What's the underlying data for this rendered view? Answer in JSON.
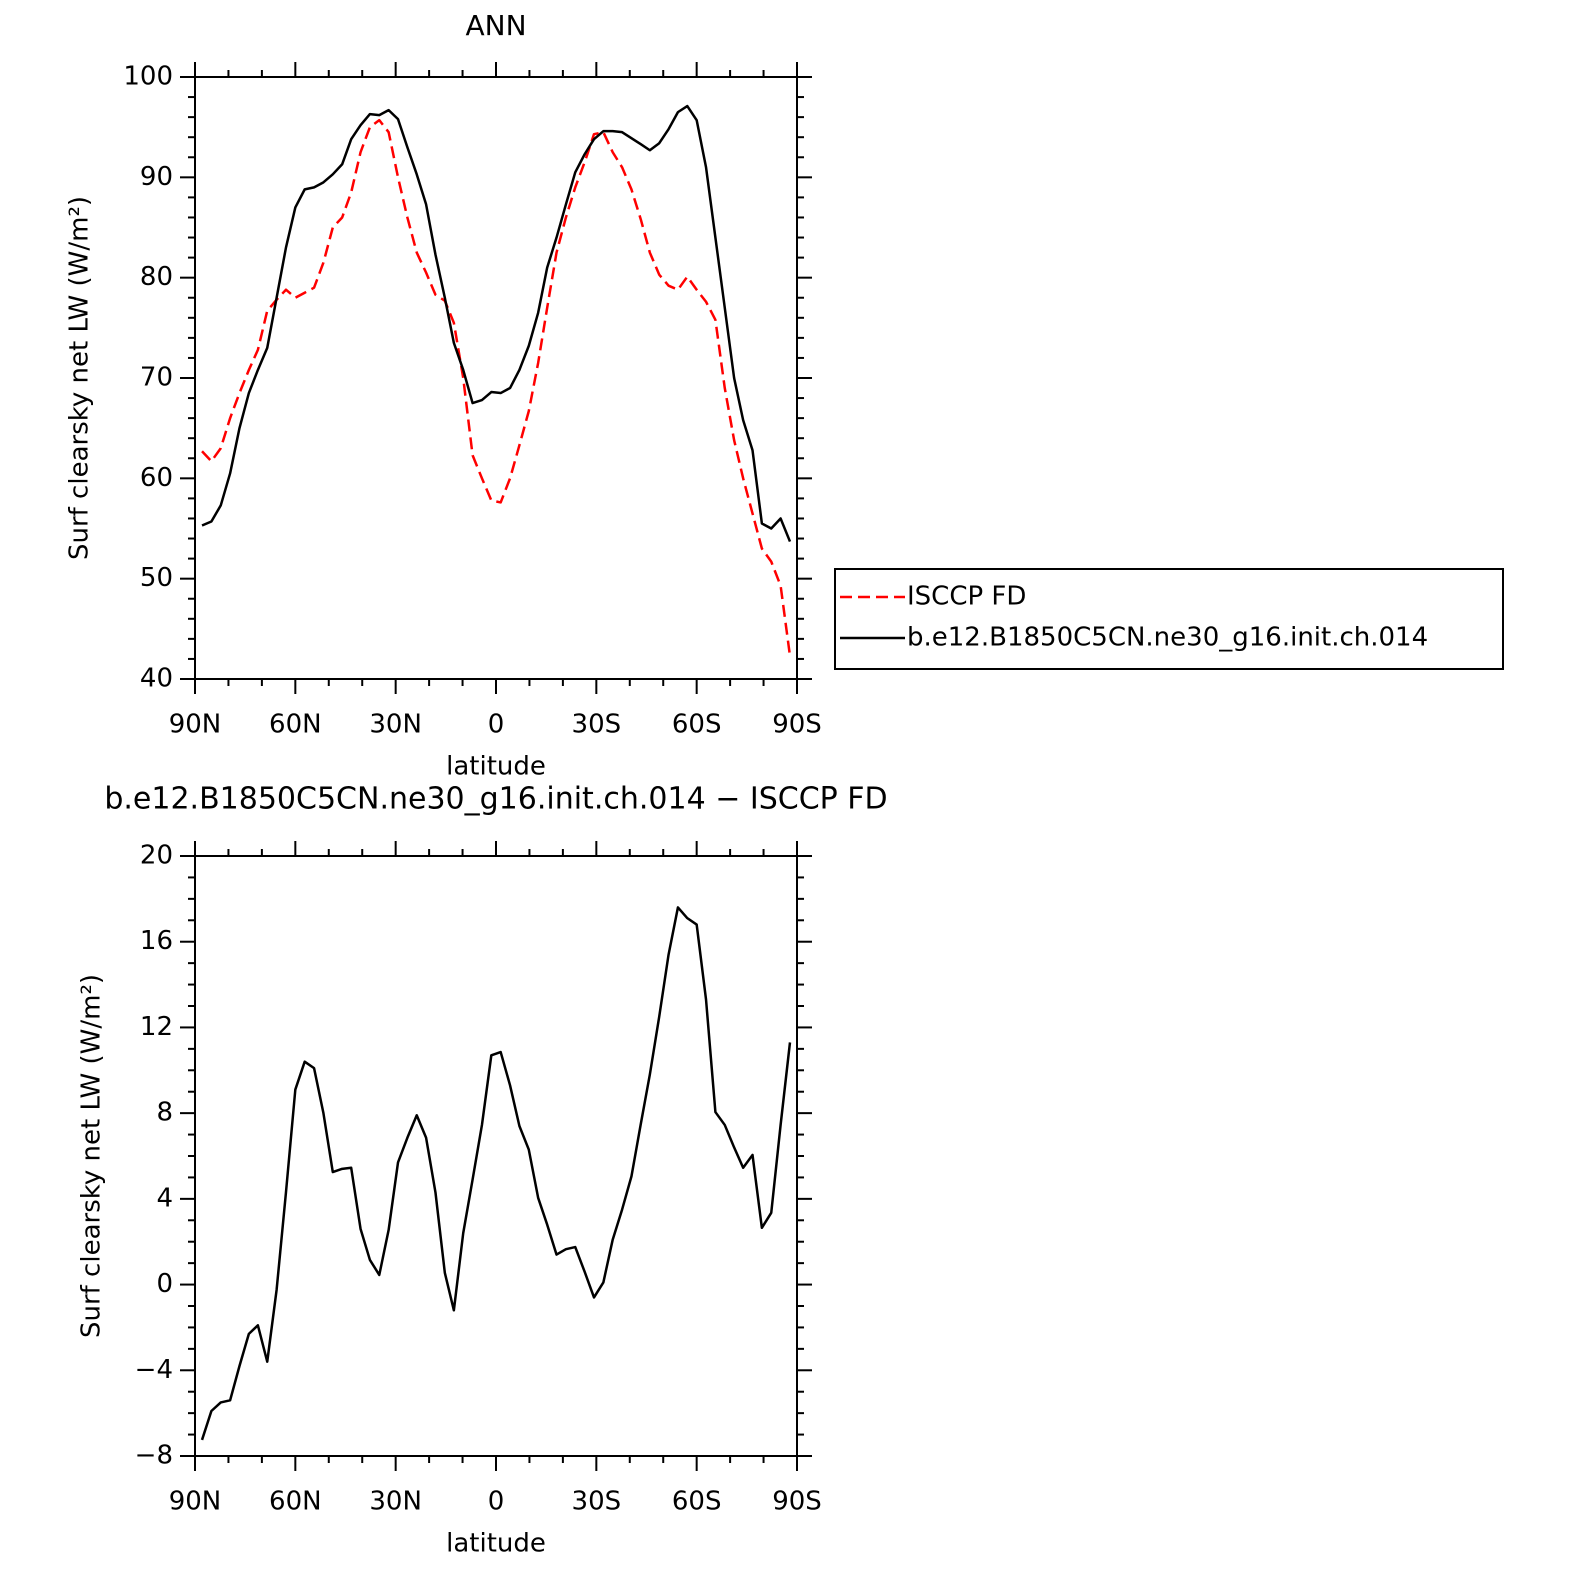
{
  "chart_data": [
    {
      "type": "line",
      "title": "ANN",
      "x_label": "latitude",
      "y_label": "Surf clearsky net LW (W/m²)",
      "x": [
        87.9,
        85.1,
        82.3,
        79.5,
        76.7,
        73.9,
        71.2,
        68.4,
        65.6,
        62.8,
        60.0,
        57.2,
        54.4,
        51.6,
        48.8,
        46.0,
        43.3,
        40.5,
        37.7,
        34.9,
        32.1,
        29.3,
        26.5,
        23.7,
        20.9,
        18.1,
        15.3,
        12.6,
        9.8,
        7.0,
        4.2,
        1.4,
        -1.4,
        -4.2,
        -7.0,
        -9.8,
        -12.6,
        -15.3,
        -18.1,
        -20.9,
        -23.7,
        -26.5,
        -29.3,
        -32.1,
        -34.9,
        -37.7,
        -40.5,
        -43.3,
        -46.0,
        -48.8,
        -51.6,
        -54.4,
        -57.2,
        -60.0,
        -62.8,
        -65.6,
        -68.4,
        -71.2,
        -73.9,
        -76.7,
        -79.5,
        -82.3,
        -85.1,
        -87.9
      ],
      "series": [
        {
          "name": "ISCCP FD",
          "color": "#ff0000",
          "dashed": true,
          "values": [
            62.7,
            61.7,
            63,
            66,
            68.5,
            70.8,
            72.8,
            76.7,
            77.8,
            78.8,
            78,
            78.5,
            79,
            81.5,
            85,
            86,
            88.5,
            92.5,
            95,
            95.7,
            94.5,
            90,
            86,
            82.5,
            80.5,
            78.3,
            77.7,
            75.5,
            70,
            62.3,
            60,
            57.8,
            57.6,
            60,
            63.3,
            66.7,
            71.5,
            77,
            82.5,
            86,
            89,
            91.5,
            94.3,
            94.5,
            92.5,
            91,
            88.8,
            85.8,
            82.5,
            80.3,
            79.2,
            78.8,
            80.1,
            78.8,
            77.6,
            75.8,
            69,
            63.8,
            60,
            56.5,
            53,
            51.7,
            49.3,
            42.3
          ]
        },
        {
          "name": "b.e12.B1850C5CN.ne30_g16.init.ch.014",
          "color": "#000000",
          "dashed": false,
          "values": [
            55.3,
            55.7,
            57.3,
            60.5,
            65,
            68.5,
            70.8,
            73,
            78,
            83,
            87,
            88.8,
            89,
            89.5,
            90.3,
            91.3,
            93.8,
            95.2,
            96.3,
            96.2,
            96.7,
            95.8,
            93,
            90.3,
            87.3,
            82.3,
            78,
            73.5,
            70.8,
            67.5,
            67.8,
            68.6,
            68.5,
            69,
            70.8,
            73.2,
            76.5,
            81,
            84,
            87.3,
            90.5,
            92.3,
            93.8,
            94.6,
            94.6,
            94.5,
            93.9,
            93.3,
            92.7,
            93.4,
            94.8,
            96.5,
            97.1,
            95.7,
            91,
            84,
            77,
            70,
            65.8,
            62.8,
            55.5,
            55,
            56,
            53.7
          ]
        }
      ],
      "xlim": [
        90,
        -90
      ],
      "xticks": [
        {
          "value": 90,
          "label": "90N"
        },
        {
          "value": 60,
          "label": "60N"
        },
        {
          "value": 30,
          "label": "30N"
        },
        0,
        {
          "value": -30,
          "label": "30S"
        },
        {
          "value": -60,
          "label": "60S"
        },
        {
          "value": -90,
          "label": "90S"
        }
      ],
      "xminorticks": [
        80,
        70,
        50,
        40,
        20,
        10,
        -10,
        -20,
        -40,
        -50,
        -70,
        -80
      ],
      "ylim": [
        40,
        100
      ],
      "yticks": [
        40,
        50,
        60,
        70,
        80,
        90,
        100
      ],
      "yminorticks": [
        42,
        44,
        46,
        48,
        52,
        54,
        56,
        58,
        62,
        64,
        66,
        68,
        72,
        74,
        76,
        78,
        82,
        84,
        86,
        88,
        92,
        94,
        96,
        98
      ]
    },
    {
      "type": "line",
      "title": "b.e12.B1850C5CN.ne30_g16.init.ch.014 − ISCCP FD",
      "x_label": "latitude",
      "y_label": "Surf clearsky net LW (W/m²)",
      "x": [
        87.9,
        85.1,
        82.3,
        79.5,
        76.7,
        73.9,
        71.2,
        68.4,
        65.6,
        62.8,
        60.0,
        57.2,
        54.4,
        51.6,
        48.8,
        46.0,
        43.3,
        40.5,
        37.7,
        34.9,
        32.1,
        29.3,
        26.5,
        23.7,
        20.9,
        18.1,
        15.3,
        12.6,
        9.8,
        7.0,
        4.2,
        1.4,
        -1.4,
        -4.2,
        -7.0,
        -9.8,
        -12.6,
        -15.3,
        -18.1,
        -20.9,
        -23.7,
        -26.5,
        -29.3,
        -32.1,
        -34.9,
        -37.7,
        -40.5,
        -43.3,
        -46.0,
        -48.8,
        -51.6,
        -54.4,
        -57.2,
        -60.0,
        -62.8,
        -65.6,
        -68.4,
        -71.2,
        -73.9,
        -76.7,
        -79.5,
        -82.3,
        -85.1,
        -87.9
      ],
      "series": [
        {
          "color": "#000000",
          "dashed": false,
          "values": [
            -7.25,
            -5.9,
            -5.5,
            -5.4,
            -3.8,
            -2.3,
            -1.9,
            -3.6,
            -0.25,
            4.3,
            9.1,
            10.4,
            10.1,
            8,
            5.25,
            5.4,
            5.45,
            2.6,
            1.15,
            0.45,
            2.55,
            5.7,
            6.85,
            7.9,
            6.85,
            4.3,
            0.55,
            -1.2,
            2.4,
            4.9,
            7.45,
            10.7,
            10.85,
            9.3,
            7.4,
            6.3,
            4.05,
            2.8,
            1.4,
            1.65,
            1.75,
            0.6,
            -0.6,
            0.1,
            2.1,
            3.5,
            5.05,
            7.5,
            9.8,
            12.5,
            15.4,
            17.6,
            17.1,
            16.8,
            13.3,
            8.05,
            7.45,
            6.4,
            5.45,
            6.05,
            2.65,
            3.35,
            7.45,
            11.3
          ]
        }
      ],
      "xlim": [
        90,
        -90
      ],
      "xticks": [
        {
          "value": 90,
          "label": "90N"
        },
        {
          "value": 60,
          "label": "60N"
        },
        {
          "value": 30,
          "label": "30N"
        },
        0,
        {
          "value": -30,
          "label": "30S"
        },
        {
          "value": -60,
          "label": "60S"
        },
        {
          "value": -90,
          "label": "90S"
        }
      ],
      "xminorticks": [
        80,
        70,
        50,
        40,
        20,
        10,
        -10,
        -20,
        -40,
        -50,
        -70,
        -80
      ],
      "ylim": [
        -8,
        20
      ],
      "yticks": [
        {
          "value": -8,
          "label": "−8"
        },
        {
          "value": -4,
          "label": "−4"
        },
        0,
        4,
        8,
        12,
        16,
        20
      ],
      "yminorticks": [
        -7,
        -6,
        -5,
        -3,
        -2,
        -1,
        1,
        2,
        3,
        5,
        6,
        7,
        9,
        10,
        11,
        13,
        14,
        15,
        17,
        18,
        19
      ]
    }
  ]
}
